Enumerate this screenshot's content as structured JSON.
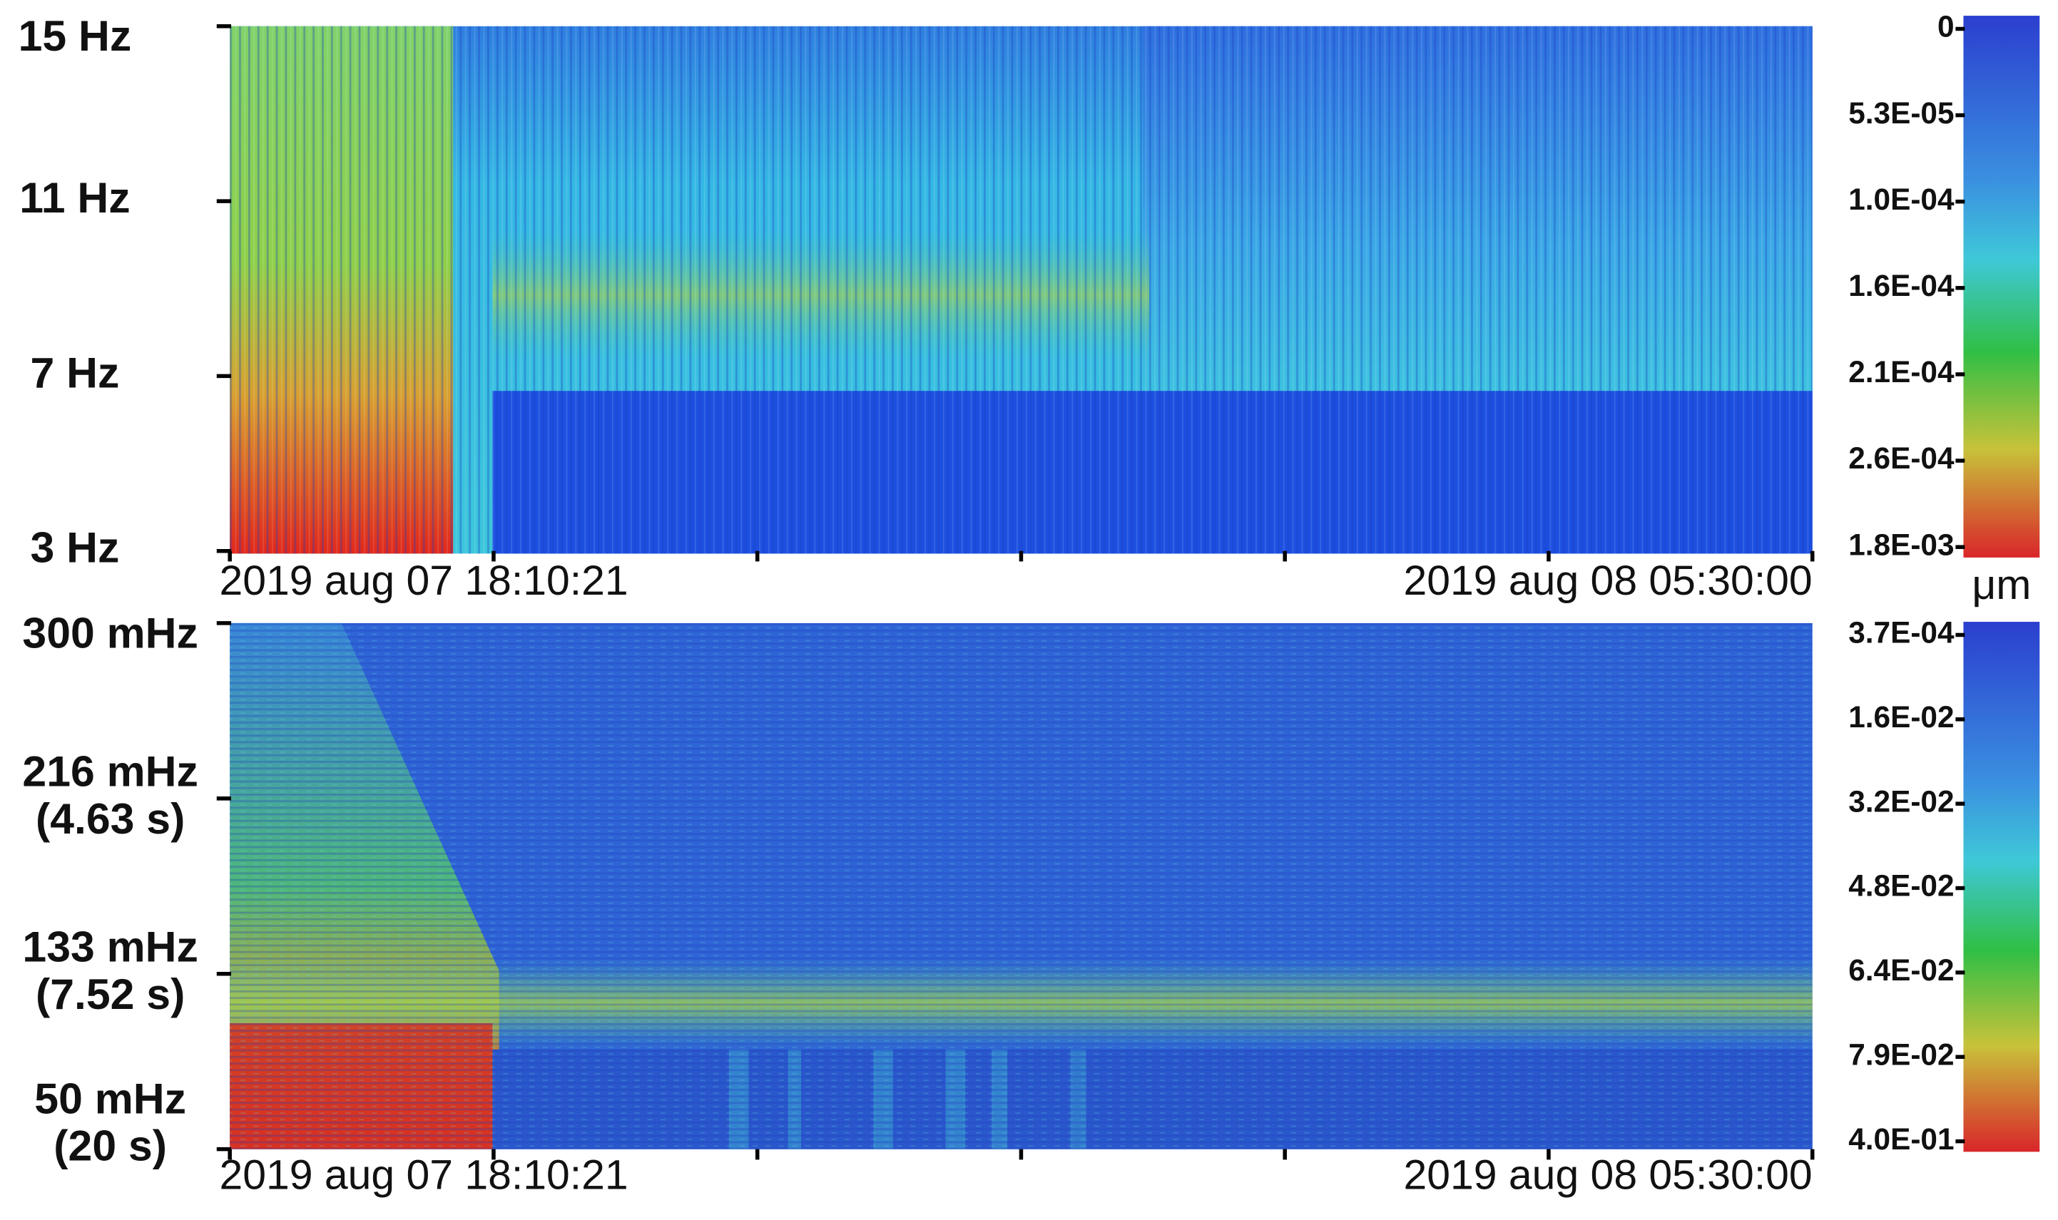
{
  "panels": [
    {
      "y_labels": [
        [
          "15 Hz"
        ],
        [
          "11 Hz"
        ],
        [
          "7 Hz"
        ],
        [
          "3 Hz"
        ]
      ],
      "x_labels": [
        "2019 aug 07 18:10:21",
        "2019 aug 08 05:30:00"
      ],
      "colorbar_labels": [
        "0",
        "5.3E-05",
        "1.0E-04",
        "1.6E-04",
        "2.1E-04",
        "2.6E-04",
        "1.8E-03"
      ]
    },
    {
      "y_labels": [
        [
          "300 mHz"
        ],
        [
          "216 mHz",
          "(4.63 s)"
        ],
        [
          "133 mHz",
          "(7.52 s)"
        ],
        [
          "50 mHz",
          "(20 s)"
        ]
      ],
      "x_labels": [
        "2019 aug 07 18:10:21",
        "2019 aug 08 05:30:00"
      ],
      "colorbar_labels": [
        "3.7E-04",
        "1.6E-02",
        "3.2E-02",
        "4.8E-02",
        "6.4E-02",
        "7.9E-02",
        "4.0E-01"
      ]
    }
  ],
  "unit": "μm"
}
